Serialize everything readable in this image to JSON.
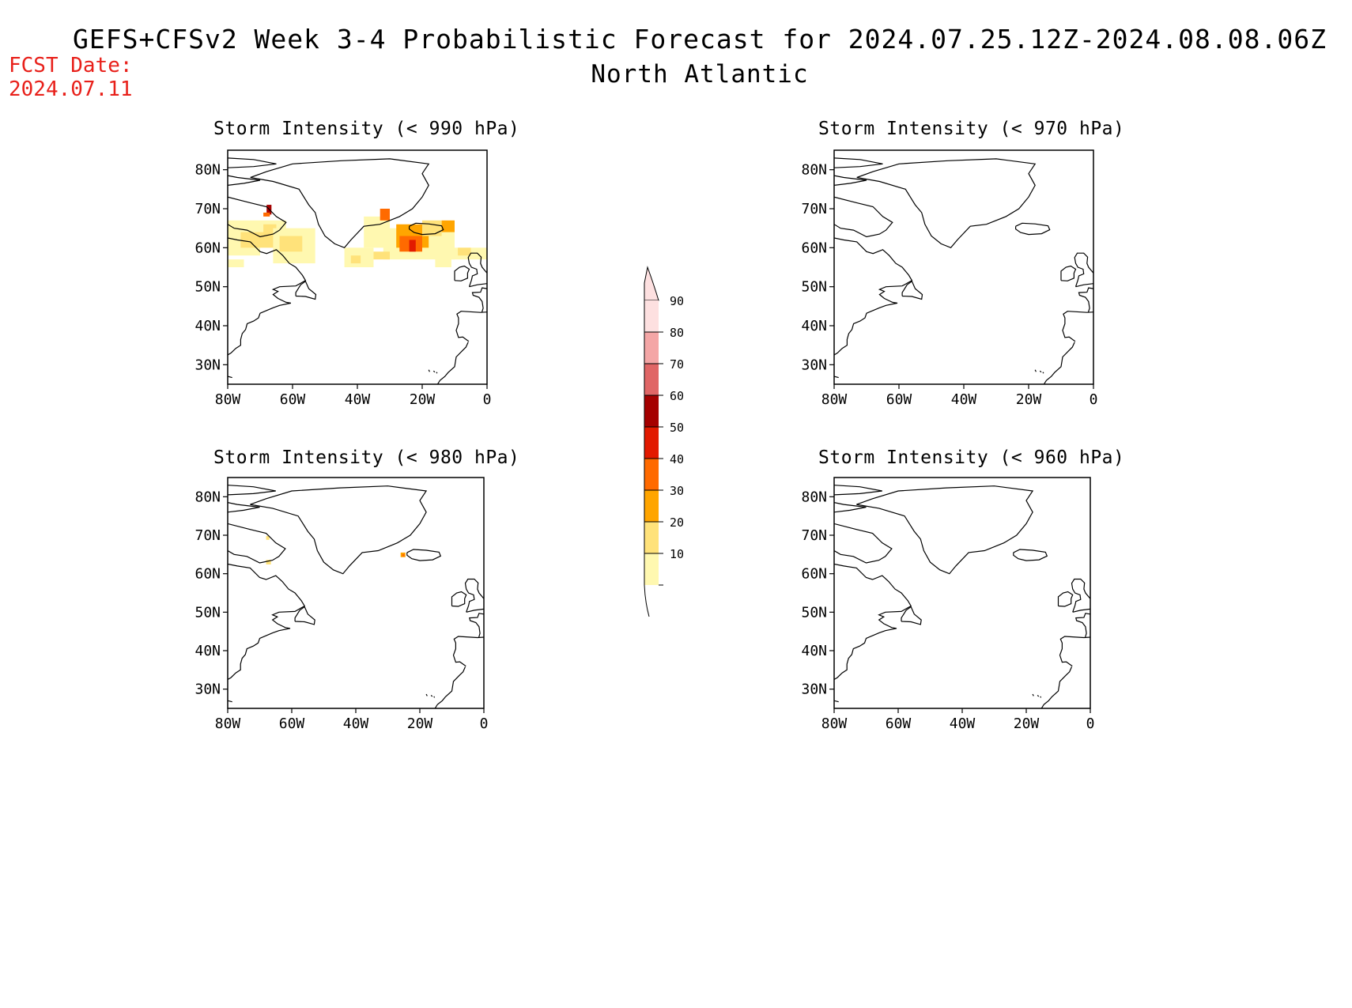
{
  "header": {
    "title": "GEFS+CFSv2 Week 3-4 Probabilistic Forecast for 2024.07.25.12Z-2024.08.08.06Z",
    "region": "North Atlantic",
    "fcst_label": "FCST Date:",
    "fcst_date": "2024.07.11"
  },
  "map_axes": {
    "lat_labels": [
      "80N",
      "70N",
      "60N",
      "50N",
      "40N",
      "30N"
    ],
    "lat_values": [
      80,
      70,
      60,
      50,
      40,
      30
    ],
    "lon_labels": [
      "80W",
      "60W",
      "40W",
      "20W",
      "0"
    ],
    "lon_values": [
      -80,
      -60,
      -40,
      -20,
      0
    ],
    "lat_range": [
      25,
      85
    ],
    "lon_range": [
      -80,
      0
    ]
  },
  "panels": [
    {
      "title": "Storm Intensity (< 990 hPa)",
      "threshold_hpa": 990,
      "has_shading": true
    },
    {
      "title": "Storm Intensity (< 970 hPa)",
      "threshold_hpa": 970,
      "has_shading": false
    },
    {
      "title": "Storm Intensity (< 980 hPa)",
      "threshold_hpa": 980,
      "has_shading": true
    },
    {
      "title": "Storm Intensity (< 960 hPa)",
      "threshold_hpa": 960,
      "has_shading": false
    }
  ],
  "colorbar": {
    "labels": [
      "90",
      "80",
      "70",
      "60",
      "50",
      "40",
      "30",
      "20",
      "10"
    ],
    "colors": [
      "#fde0e0",
      "#f4a6a6",
      "#e06666",
      "#a50000",
      "#e21a00",
      "#ff6a00",
      "#ffa500",
      "#ffe27a",
      "#fff8b0"
    ]
  }
}
